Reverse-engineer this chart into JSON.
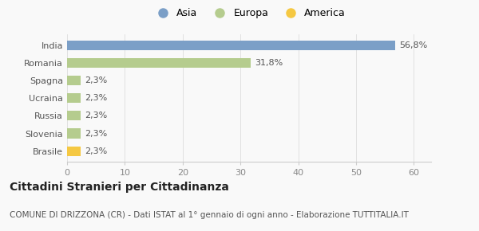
{
  "categories": [
    "Brasile",
    "Slovenia",
    "Russia",
    "Ucraina",
    "Spagna",
    "Romania",
    "India"
  ],
  "values": [
    2.3,
    2.3,
    2.3,
    2.3,
    2.3,
    31.8,
    56.8
  ],
  "bar_colors": [
    "#f5c842",
    "#b5cc8e",
    "#b5cc8e",
    "#b5cc8e",
    "#b5cc8e",
    "#b5cc8e",
    "#7b9fc7"
  ],
  "labels": [
    "2,3%",
    "2,3%",
    "2,3%",
    "2,3%",
    "2,3%",
    "31,8%",
    "56,8%"
  ],
  "legend_items": [
    {
      "label": "Asia",
      "color": "#7b9fc7"
    },
    {
      "label": "Europa",
      "color": "#b5cc8e"
    },
    {
      "label": "America",
      "color": "#f5c842"
    }
  ],
  "xlim": [
    0,
    63
  ],
  "xticks": [
    0,
    10,
    20,
    30,
    40,
    50,
    60
  ],
  "title": "Cittadini Stranieri per Cittadinanza",
  "subtitle": "COMUNE DI DRIZZONA (CR) - Dati ISTAT al 1° gennaio di ogni anno - Elaborazione TUTTITALIA.IT",
  "background_color": "#f9f9f9",
  "bar_height": 0.55,
  "label_fontsize": 8,
  "title_fontsize": 10,
  "subtitle_fontsize": 7.5,
  "tick_fontsize": 8,
  "legend_fontsize": 9
}
